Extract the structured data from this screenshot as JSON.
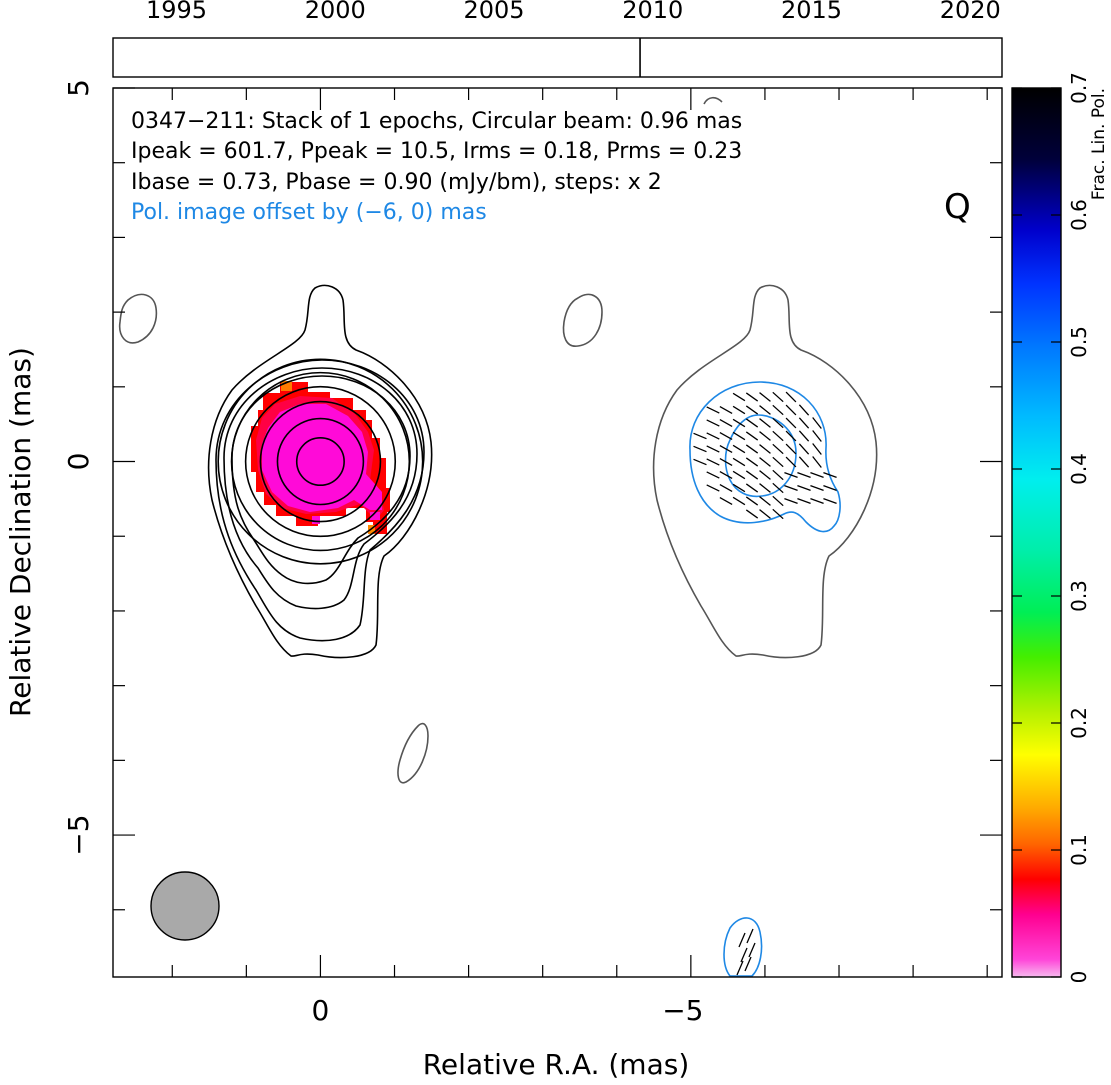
{
  "chart_data": {
    "type": "contour",
    "source": "0347−211",
    "info_lines": [
      "0347−211: Stack of 1 epochs, Circular beam: 0.96 mas",
      "Ipeak = 601.7, Ppeak = 10.5, Irms = 0.18, Prms = 0.23",
      "Ibase = 0.73, Pbase = 0.90 (mJy/bm), steps: x 2"
    ],
    "offset_note": "Pol. image offset by (−6, 0) mas",
    "band_label": "Q",
    "xlabel": "Relative R.A. (mas)",
    "ylabel": "Relative Declination (mas)",
    "xlim": [
      2.8,
      -9.2
    ],
    "ylim": [
      -6.9,
      5
    ],
    "x_major_ticks": [
      0,
      -5
    ],
    "x_tick_labels": [
      "0",
      "−5"
    ],
    "y_major_ticks": [
      5,
      0,
      -5
    ],
    "y_tick_labels": [
      "5",
      "0",
      "−5"
    ],
    "minor_tick_step": 1,
    "beam": {
      "ra": 1.83,
      "dec": -6.0,
      "diameter_mas": 0.96
    },
    "epoch_axis": {
      "range": [
        1993,
        2021
      ],
      "tick_labels": [
        "1995",
        "2000",
        "2005",
        "2010",
        "2015",
        "2020"
      ],
      "epochs": [
        2009.6
      ]
    },
    "colorbar": {
      "label": "Frac. Lin. Pol.",
      "range": [
        0,
        0.7
      ],
      "tick_labels": [
        "0",
        "0.1",
        "0.2",
        "0.3",
        "0.4",
        "0.5",
        "0.6",
        "0.7"
      ]
    },
    "core": {
      "ra": 0,
      "dec": 0
    },
    "total_intensity_contour_radii_mas": [
      0.32,
      0.58,
      0.81,
      1.01,
      1.2,
      1.38
    ],
    "pol_contour_radii_mas": [
      0.28,
      0.58
    ],
    "colors": {
      "stokes_i": "#000000",
      "offset_i": "#555555",
      "polarization": "#1e88e5",
      "beam_fill": "#a9a9a9"
    }
  }
}
